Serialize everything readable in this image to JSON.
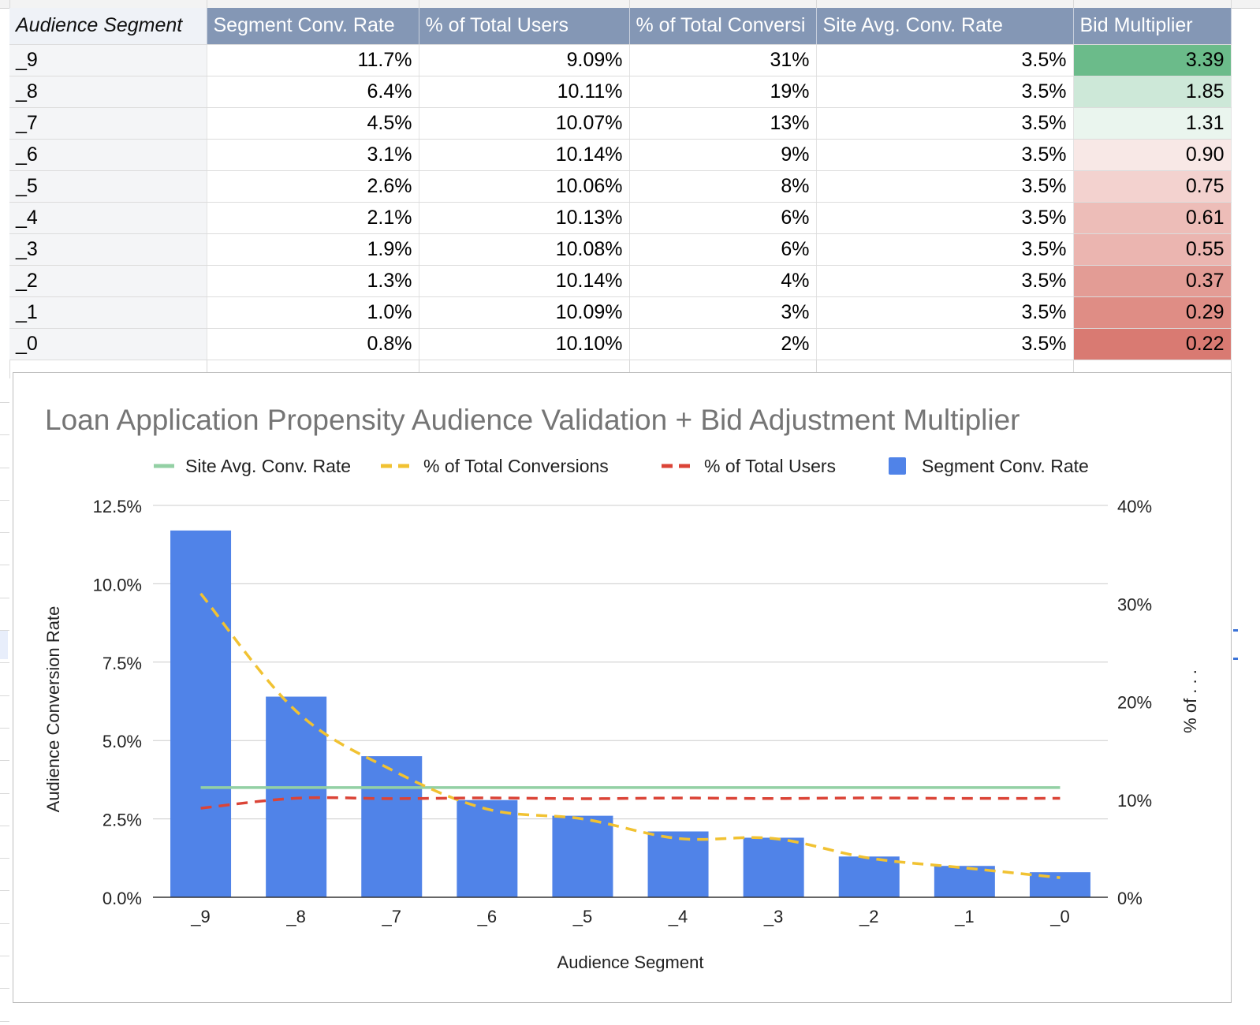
{
  "table": {
    "headers": [
      "Audience Segment",
      "Segment Conv. Rate",
      "% of Total Users",
      "% of Total Conversi",
      "Site Avg. Conv. Rate",
      "Bid Multiplier"
    ],
    "rows": [
      {
        "segment": "_9",
        "conv_rate": "11.7%",
        "pct_users": "9.09%",
        "pct_conv": "31%",
        "site_avg": "3.5%",
        "bid": "3.39",
        "bid_color": "#6bbb8a"
      },
      {
        "segment": "_8",
        "conv_rate": "6.4%",
        "pct_users": "10.11%",
        "pct_conv": "19%",
        "site_avg": "3.5%",
        "bid": "1.85",
        "bid_color": "#cde8d8"
      },
      {
        "segment": "_7",
        "conv_rate": "4.5%",
        "pct_users": "10.07%",
        "pct_conv": "13%",
        "site_avg": "3.5%",
        "bid": "1.31",
        "bid_color": "#eaf5ee"
      },
      {
        "segment": "_6",
        "conv_rate": "3.1%",
        "pct_users": "10.14%",
        "pct_conv": "9%",
        "site_avg": "3.5%",
        "bid": "0.90",
        "bid_color": "#f8e8e6"
      },
      {
        "segment": "_5",
        "conv_rate": "2.6%",
        "pct_users": "10.06%",
        "pct_conv": "8%",
        "site_avg": "3.5%",
        "bid": "0.75",
        "bid_color": "#f3d2cf"
      },
      {
        "segment": "_4",
        "conv_rate": "2.1%",
        "pct_users": "10.13%",
        "pct_conv": "6%",
        "site_avg": "3.5%",
        "bid": "0.61",
        "bid_color": "#edbdb8"
      },
      {
        "segment": "_3",
        "conv_rate": "1.9%",
        "pct_users": "10.08%",
        "pct_conv": "6%",
        "site_avg": "3.5%",
        "bid": "0.55",
        "bid_color": "#ebb5b0"
      },
      {
        "segment": "_2",
        "conv_rate": "1.3%",
        "pct_users": "10.14%",
        "pct_conv": "4%",
        "site_avg": "3.5%",
        "bid": "0.37",
        "bid_color": "#e39c95"
      },
      {
        "segment": "_1",
        "conv_rate": "1.0%",
        "pct_users": "10.09%",
        "pct_conv": "3%",
        "site_avg": "3.5%",
        "bid": "0.29",
        "bid_color": "#df8d85"
      },
      {
        "segment": "_0",
        "conv_rate": "0.8%",
        "pct_users": "10.10%",
        "pct_conv": "2%",
        "site_avg": "3.5%",
        "bid": "0.22",
        "bid_color": "#d97a72"
      }
    ]
  },
  "chart_data": {
    "type": "bar",
    "title": "Loan Application Propensity Audience Validation + Bid Adjustment Multiplier",
    "xlabel": "Audience Segment",
    "ylabel": "Audience Conversion Rate",
    "y2label": "% of . . .",
    "categories": [
      "_9",
      "_8",
      "_7",
      "_6",
      "_5",
      "_4",
      "_3",
      "_2",
      "_1",
      "_0"
    ],
    "ylim": [
      0,
      12.5
    ],
    "y2lim": [
      0,
      40
    ],
    "yticks": [
      "0.0%",
      "2.5%",
      "5.0%",
      "7.5%",
      "10.0%",
      "12.5%"
    ],
    "y2ticks": [
      "0%",
      "10%",
      "20%",
      "30%",
      "40%"
    ],
    "legend_position": "top",
    "grid": true,
    "series": [
      {
        "name": "Site Avg. Conv. Rate",
        "kind": "line",
        "axis": "left",
        "style": "solid",
        "color": "#93d0a4",
        "values": [
          3.5,
          3.5,
          3.5,
          3.5,
          3.5,
          3.5,
          3.5,
          3.5,
          3.5,
          3.5
        ]
      },
      {
        "name": "% of Total Conversions",
        "kind": "line",
        "axis": "right",
        "style": "dashed",
        "color": "#f1c232",
        "values": [
          31,
          19,
          13,
          9,
          8,
          6,
          6,
          4,
          3,
          2
        ]
      },
      {
        "name": "% of Total Users",
        "kind": "line",
        "axis": "right",
        "style": "dashed",
        "color": "#db4437",
        "values": [
          9.09,
          10.11,
          10.07,
          10.14,
          10.06,
          10.13,
          10.08,
          10.14,
          10.09,
          10.1
        ]
      },
      {
        "name": "Segment Conv. Rate",
        "kind": "bar",
        "axis": "left",
        "color": "#5083e8",
        "values": [
          11.7,
          6.4,
          4.5,
          3.1,
          2.6,
          2.1,
          1.9,
          1.3,
          1.0,
          0.8
        ]
      }
    ]
  }
}
